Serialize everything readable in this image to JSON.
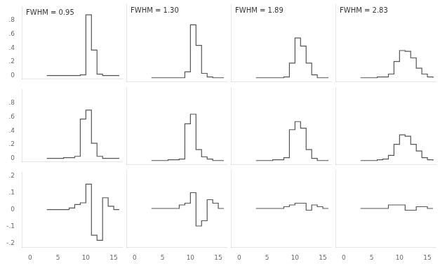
{
  "chart_data": [
    {
      "type": "line",
      "annotations": [
        "FWHM = 0.95"
      ],
      "color": "#555555",
      "grid": false,
      "tick_labels": "y",
      "x": [
        3,
        4,
        5,
        6,
        7,
        8,
        9,
        10,
        11,
        12,
        13,
        14,
        15,
        16
      ],
      "values": [
        0,
        0,
        0,
        0,
        0,
        0,
        0.01,
        0.88,
        0.37,
        0.02,
        0.0,
        0.0,
        0.0,
        0
      ],
      "xlim": [
        -1.5,
        16.5
      ],
      "xticks": [
        0,
        5,
        10,
        15
      ],
      "ylim": [
        -0.05,
        1.0
      ],
      "yticks": [
        0,
        {
          "value": 0.2,
          "label": ".2"
        },
        {
          "value": 0.4,
          "label": ".4"
        },
        {
          "value": 0.6,
          "label": ".6"
        },
        {
          "value": 0.8,
          "label": ".8"
        }
      ]
    },
    {
      "type": "line",
      "annotations": [
        "FWHM = 1.30"
      ],
      "color": "#555555",
      "grid": false,
      "tick_labels": false,
      "x": [
        3,
        4,
        5,
        6,
        7,
        8,
        9,
        10,
        11,
        12,
        13,
        14,
        15,
        16
      ],
      "values": [
        0,
        0,
        0,
        0,
        0,
        0,
        0.08,
        0.72,
        0.44,
        0.06,
        0.01,
        0.0,
        0.0,
        0
      ],
      "xlim": [
        -1.5,
        16.5
      ],
      "xticks": [
        0,
        5,
        10,
        15
      ],
      "ylim": [
        -0.05,
        1.0
      ],
      "yticks": [
        0,
        {
          "value": 0.2,
          "label": ".2"
        },
        {
          "value": 0.4,
          "label": ".4"
        },
        {
          "value": 0.6,
          "label": ".6"
        },
        {
          "value": 0.8,
          "label": ".8"
        }
      ]
    },
    {
      "type": "line",
      "annotations": [
        "FWHM = 1.89"
      ],
      "color": "#555555",
      "grid": false,
      "tick_labels": false,
      "x": [
        3,
        4,
        5,
        6,
        7,
        8,
        9,
        10,
        11,
        12,
        13,
        14,
        15,
        16
      ],
      "values": [
        0,
        0,
        0,
        0,
        0,
        0.01,
        0.2,
        0.54,
        0.43,
        0.2,
        0.04,
        0.0,
        0.0,
        0
      ],
      "xlim": [
        -1.5,
        16.5
      ],
      "xticks": [
        0,
        5,
        10,
        15
      ],
      "ylim": [
        -0.05,
        1.0
      ],
      "yticks": [
        0,
        {
          "value": 0.2,
          "label": ".2"
        },
        {
          "value": 0.4,
          "label": ".4"
        },
        {
          "value": 0.6,
          "label": ".6"
        },
        {
          "value": 0.8,
          "label": ".8"
        }
      ]
    },
    {
      "type": "line",
      "annotations": [
        "FWHM = 2.83"
      ],
      "color": "#555555",
      "grid": false,
      "tick_labels": false,
      "x": [
        3,
        4,
        5,
        6,
        7,
        8,
        9,
        10,
        11,
        12,
        13,
        14,
        15,
        16
      ],
      "values": [
        0,
        0,
        0,
        0.01,
        0.01,
        0.05,
        0.22,
        0.37,
        0.36,
        0.27,
        0.13,
        0.05,
        0.01,
        0
      ],
      "xlim": [
        -1.5,
        16.5
      ],
      "xticks": [
        0,
        5,
        10,
        15
      ],
      "ylim": [
        -0.05,
        1.0
      ],
      "yticks": [
        0,
        {
          "value": 0.2,
          "label": ".2"
        },
        {
          "value": 0.4,
          "label": ".4"
        },
        {
          "value": 0.6,
          "label": ".6"
        },
        {
          "value": 0.8,
          "label": ".8"
        }
      ]
    },
    {
      "type": "line",
      "color": "#555555",
      "grid": false,
      "tick_labels": "y",
      "x": [
        3,
        4,
        5,
        6,
        7,
        8,
        9,
        10,
        11,
        12,
        13,
        14,
        15,
        16
      ],
      "values": [
        0,
        0,
        0,
        0.01,
        0.01,
        0.03,
        0.57,
        0.7,
        0.22,
        0.03,
        0.0,
        0.0,
        0.0,
        0
      ],
      "xlim": [
        -1.5,
        16.5
      ],
      "xticks": [
        0,
        5,
        10,
        15
      ],
      "ylim": [
        -0.05,
        1.0
      ],
      "yticks": [
        0,
        {
          "value": 0.2,
          "label": ".2"
        },
        {
          "value": 0.4,
          "label": ".4"
        },
        {
          "value": 0.6,
          "label": ".6"
        },
        {
          "value": 0.8,
          "label": ".8"
        }
      ]
    },
    {
      "type": "line",
      "color": "#555555",
      "grid": false,
      "tick_labels": false,
      "x": [
        3,
        4,
        5,
        6,
        7,
        8,
        9,
        10,
        11,
        12,
        13,
        14,
        15,
        16
      ],
      "values": [
        0,
        0,
        0,
        0.01,
        0.01,
        0.02,
        0.5,
        0.63,
        0.15,
        0.05,
        0.02,
        0.0,
        0.0,
        0
      ],
      "xlim": [
        -1.5,
        16.5
      ],
      "xticks": [
        0,
        5,
        10,
        15
      ],
      "ylim": [
        -0.05,
        1.0
      ],
      "yticks": [
        0,
        {
          "value": 0.2,
          "label": ".2"
        },
        {
          "value": 0.4,
          "label": ".4"
        },
        {
          "value": 0.6,
          "label": ".6"
        },
        {
          "value": 0.8,
          "label": ".8"
        }
      ]
    },
    {
      "type": "line",
      "color": "#555555",
      "grid": false,
      "tick_labels": false,
      "x": [
        3,
        4,
        5,
        6,
        7,
        8,
        9,
        10,
        11,
        12,
        13,
        14,
        15,
        16
      ],
      "values": [
        0,
        0,
        0,
        0.01,
        0.01,
        0.04,
        0.42,
        0.53,
        0.44,
        0.15,
        0.03,
        0.0,
        0.0,
        0
      ],
      "xlim": [
        -1.5,
        16.5
      ],
      "xticks": [
        0,
        5,
        10,
        15
      ],
      "ylim": [
        -0.05,
        1.0
      ],
      "yticks": [
        0,
        {
          "value": 0.2,
          "label": ".2"
        },
        {
          "value": 0.4,
          "label": ".4"
        },
        {
          "value": 0.6,
          "label": ".6"
        },
        {
          "value": 0.8,
          "label": ".8"
        }
      ]
    },
    {
      "type": "line",
      "color": "#555555",
      "grid": false,
      "tick_labels": false,
      "x": [
        3,
        4,
        5,
        6,
        7,
        8,
        9,
        10,
        11,
        12,
        13,
        14,
        15,
        16
      ],
      "values": [
        0,
        0,
        0,
        0.01,
        0.02,
        0.07,
        0.22,
        0.35,
        0.33,
        0.22,
        0.13,
        0.04,
        0.01,
        0
      ],
      "xlim": [
        -1.5,
        16.5
      ],
      "xticks": [
        0,
        5,
        10,
        15
      ],
      "ylim": [
        -0.05,
        1.0
      ],
      "yticks": [
        0,
        {
          "value": 0.2,
          "label": ".2"
        },
        {
          "value": 0.4,
          "label": ".4"
        },
        {
          "value": 0.6,
          "label": ".6"
        },
        {
          "value": 0.8,
          "label": ".8"
        }
      ]
    },
    {
      "type": "line",
      "color": "#555555",
      "grid": false,
      "x": [
        3,
        4,
        5,
        6,
        7,
        8,
        9,
        10,
        11,
        12,
        13,
        14,
        15,
        16
      ],
      "values": [
        0,
        0,
        0,
        0,
        0.01,
        0.03,
        0.04,
        0.15,
        -0.15,
        -0.18,
        0.07,
        0.02,
        0,
        0
      ],
      "xlim": [
        -1.5,
        16.5
      ],
      "xticks": [
        0,
        5,
        10,
        15
      ],
      "ylim": [
        -0.22,
        0.22
      ],
      "yticks": [
        {
          "value": -0.2,
          "label": "-.2"
        },
        {
          "value": -0.1,
          "label": "-.1"
        },
        0,
        {
          "value": 0.1,
          "label": ".1"
        },
        {
          "value": 0.2,
          "label": ".2"
        }
      ]
    },
    {
      "type": "line",
      "color": "#555555",
      "grid": false,
      "tick_labels": "x",
      "x": [
        3,
        4,
        5,
        6,
        7,
        8,
        9,
        10,
        11,
        12,
        13,
        14,
        15,
        16
      ],
      "values": [
        0,
        0,
        0,
        0,
        0,
        0.02,
        0.03,
        0.09,
        -0.1,
        -0.07,
        0.05,
        0.03,
        0,
        0
      ],
      "xlim": [
        -1.5,
        16.5
      ],
      "xticks": [
        0,
        5,
        10,
        15
      ],
      "ylim": [
        -0.22,
        0.22
      ],
      "yticks": [
        {
          "value": -0.2,
          "label": "-.2"
        },
        {
          "value": -0.1,
          "label": "-.1"
        },
        0,
        {
          "value": 0.1,
          "label": ".1"
        },
        {
          "value": 0.2,
          "label": ".2"
        }
      ]
    },
    {
      "type": "line",
      "color": "#555555",
      "grid": false,
      "tick_labels": "x",
      "x": [
        3,
        4,
        5,
        6,
        7,
        8,
        9,
        10,
        11,
        12,
        13,
        14,
        15,
        16
      ],
      "values": [
        0,
        0,
        0,
        0,
        0,
        0.01,
        0.02,
        0.03,
        0.03,
        -0.01,
        0.02,
        0.01,
        0,
        0
      ],
      "xlim": [
        -1.5,
        16.5
      ],
      "xticks": [
        0,
        5,
        10,
        15
      ],
      "ylim": [
        -0.22,
        0.22
      ],
      "yticks": [
        {
          "value": -0.2,
          "label": "-.2"
        },
        {
          "value": -0.1,
          "label": "-.1"
        },
        0,
        {
          "value": 0.1,
          "label": ".1"
        },
        {
          "value": 0.2,
          "label": ".2"
        }
      ]
    },
    {
      "type": "line",
      "color": "#555555",
      "grid": false,
      "tick_labels": "x",
      "x": [
        3,
        4,
        5,
        6,
        7,
        8,
        9,
        10,
        11,
        12,
        13,
        14,
        15,
        16
      ],
      "values": [
        0,
        0,
        0,
        0,
        0,
        0.02,
        0.02,
        0.02,
        -0.01,
        -0.01,
        0.01,
        0.01,
        0,
        0
      ],
      "xlim": [
        -1.5,
        16.5
      ],
      "xticks": [
        0,
        5,
        10,
        15
      ],
      "ylim": [
        -0.22,
        0.22
      ],
      "yticks": [
        {
          "value": -0.2,
          "label": "-.2"
        },
        {
          "value": -0.1,
          "label": "-.1"
        },
        0,
        {
          "value": 0.1,
          "label": ".1"
        },
        {
          "value": 0.2,
          "label": ".2"
        }
      ]
    }
  ]
}
